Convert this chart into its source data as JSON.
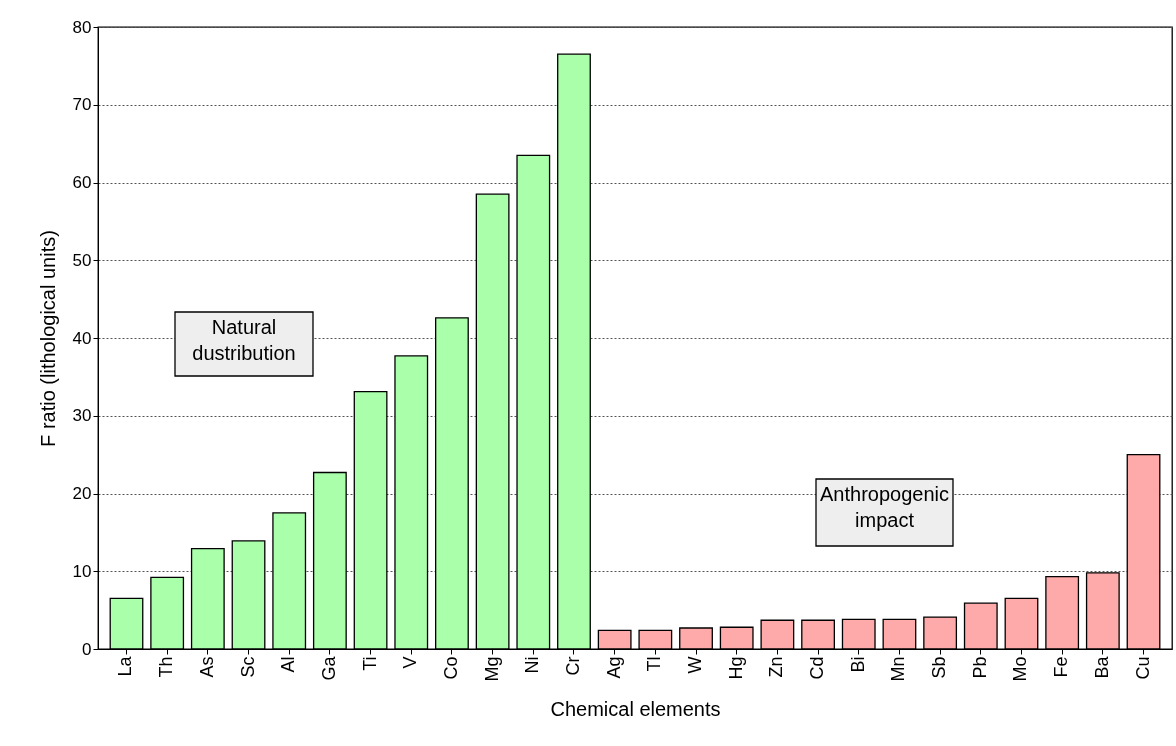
{
  "chart_data": {
    "type": "bar",
    "xlabel": "Chemical elements",
    "ylabel": "F ratio (lithological units)",
    "categories": [
      "La",
      "Th",
      "As",
      "Sc",
      "Al",
      "Ga",
      "Ti",
      "V",
      "Co",
      "Mg",
      "Ni",
      "Cr",
      null,
      "Ag",
      "Tl",
      "W",
      "Hg",
      "Zn",
      "Cd",
      "Bi",
      "Mn",
      "Sb",
      "Pb",
      "Mo",
      "Fe",
      "Ba",
      "Cu"
    ],
    "values": [
      6.5,
      9.2,
      12.9,
      13.9,
      17.5,
      22.7,
      33.1,
      37.7,
      42.6,
      58.5,
      63.5,
      76.5,
      null,
      2.4,
      2.4,
      2.7,
      2.8,
      3.7,
      3.7,
      3.8,
      3.8,
      4.1,
      5.9,
      6.5,
      9.3,
      9.8,
      25.0
    ],
    "colors": [
      "#aaffaa",
      "#aaffaa",
      "#aaffaa",
      "#aaffaa",
      "#aaffaa",
      "#aaffaa",
      "#aaffaa",
      "#aaffaa",
      "#aaffaa",
      "#aaffaa",
      "#aaffaa",
      "#aaffaa",
      null,
      "#ffaaaa",
      "#ffaaaa",
      "#ffaaaa",
      "#ffaaaa",
      "#ffaaaa",
      "#ffaaaa",
      "#ffaaaa",
      "#ffaaaa",
      "#ffaaaa",
      "#ffaaaa",
      "#ffaaaa",
      "#ffaaaa",
      "#ffaaaa",
      "#ffaaaa"
    ],
    "ylim": [
      0,
      80
    ],
    "yticks": [
      0,
      10,
      20,
      30,
      40,
      50,
      60,
      70,
      80
    ],
    "grid": "y",
    "annotations": [
      "Natural\ndustribution",
      "Anthropogenic\nimpact"
    ]
  }
}
